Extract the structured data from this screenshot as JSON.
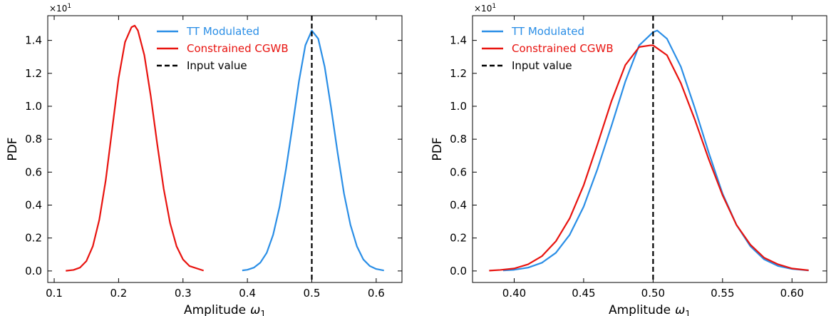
{
  "chart_data": [
    {
      "type": "line",
      "xlabel": "Amplitude",
      "xlabel_symbol": "ω",
      "xlabel_subscript": "1",
      "ylabel": "PDF",
      "y_multiplier_base": "×10",
      "y_multiplier_exp": "1",
      "xlim": [
        0.09,
        0.64
      ],
      "ylim": [
        -0.07,
        1.55
      ],
      "xticks": [
        0.1,
        0.2,
        0.3,
        0.4,
        0.5,
        0.6
      ],
      "xtick_labels": [
        "0.1",
        "0.2",
        "0.3",
        "0.4",
        "0.5",
        "0.6"
      ],
      "yticks": [
        0.0,
        0.2,
        0.4,
        0.6,
        0.8,
        1.0,
        1.2,
        1.4
      ],
      "ytick_labels": [
        "0.0",
        "0.2",
        "0.4",
        "0.6",
        "0.8",
        "1.0",
        "1.2",
        "1.4"
      ],
      "legend_position": "top-center",
      "input_value": 0.5,
      "series": [
        {
          "name": "TT Modulated",
          "color": "#2a8ee6",
          "x": [
            0.392,
            0.4,
            0.41,
            0.42,
            0.43,
            0.44,
            0.45,
            0.46,
            0.47,
            0.48,
            0.49,
            0.5,
            0.51,
            0.52,
            0.53,
            0.54,
            0.55,
            0.56,
            0.57,
            0.58,
            0.59,
            0.6,
            0.612
          ],
          "y": [
            0.003,
            0.007,
            0.02,
            0.05,
            0.11,
            0.22,
            0.39,
            0.62,
            0.88,
            1.15,
            1.37,
            1.46,
            1.41,
            1.24,
            0.99,
            0.72,
            0.47,
            0.28,
            0.15,
            0.07,
            0.03,
            0.012,
            0.003
          ]
        },
        {
          "name": "Constrained CGWB",
          "color": "#e8130f",
          "x": [
            0.118,
            0.13,
            0.14,
            0.15,
            0.16,
            0.17,
            0.18,
            0.19,
            0.2,
            0.21,
            0.22,
            0.225,
            0.23,
            0.24,
            0.25,
            0.26,
            0.27,
            0.28,
            0.29,
            0.3,
            0.31,
            0.332
          ],
          "y": [
            0.001,
            0.006,
            0.02,
            0.06,
            0.15,
            0.31,
            0.55,
            0.86,
            1.17,
            1.39,
            1.48,
            1.49,
            1.46,
            1.31,
            1.06,
            0.77,
            0.5,
            0.29,
            0.15,
            0.07,
            0.03,
            0.002
          ]
        }
      ],
      "vline": {
        "name": "Input value",
        "color": "#000000",
        "x": 0.5
      }
    },
    {
      "type": "line",
      "xlabel": "Amplitude",
      "xlabel_symbol": "ω",
      "xlabel_subscript": "1",
      "ylabel": "PDF",
      "y_multiplier_base": "×10",
      "y_multiplier_exp": "1",
      "xlim": [
        0.37,
        0.625
      ],
      "ylim": [
        -0.07,
        1.55
      ],
      "xticks": [
        0.4,
        0.45,
        0.5,
        0.55,
        0.6
      ],
      "xtick_labels": [
        "0.40",
        "0.45",
        "0.50",
        "0.55",
        "0.60"
      ],
      "yticks": [
        0.0,
        0.2,
        0.4,
        0.6,
        0.8,
        1.0,
        1.2,
        1.4
      ],
      "ytick_labels": [
        "0.0",
        "0.2",
        "0.4",
        "0.6",
        "0.8",
        "1.0",
        "1.2",
        "1.4"
      ],
      "legend_position": "top-left",
      "input_value": 0.5,
      "series": [
        {
          "name": "TT Modulated",
          "color": "#2a8ee6",
          "x": [
            0.392,
            0.4,
            0.41,
            0.42,
            0.43,
            0.44,
            0.45,
            0.46,
            0.47,
            0.48,
            0.49,
            0.5,
            0.503,
            0.51,
            0.52,
            0.53,
            0.54,
            0.55,
            0.56,
            0.57,
            0.58,
            0.59,
            0.6,
            0.612
          ],
          "y": [
            0.003,
            0.007,
            0.02,
            0.05,
            0.11,
            0.22,
            0.39,
            0.62,
            0.88,
            1.15,
            1.37,
            1.45,
            1.46,
            1.41,
            1.24,
            0.99,
            0.72,
            0.47,
            0.28,
            0.15,
            0.07,
            0.03,
            0.012,
            0.003
          ]
        },
        {
          "name": "Constrained CGWB",
          "color": "#e8130f",
          "x": [
            0.382,
            0.39,
            0.4,
            0.41,
            0.42,
            0.43,
            0.44,
            0.45,
            0.46,
            0.47,
            0.48,
            0.49,
            0.498,
            0.5,
            0.51,
            0.52,
            0.53,
            0.54,
            0.55,
            0.56,
            0.57,
            0.58,
            0.59,
            0.6,
            0.612
          ],
          "y": [
            0.002,
            0.006,
            0.015,
            0.04,
            0.09,
            0.18,
            0.32,
            0.52,
            0.77,
            1.03,
            1.25,
            1.36,
            1.37,
            1.37,
            1.31,
            1.14,
            0.92,
            0.68,
            0.46,
            0.28,
            0.16,
            0.08,
            0.04,
            0.015,
            0.004
          ]
        }
      ],
      "vline": {
        "name": "Input value",
        "color": "#000000",
        "x": 0.5
      }
    }
  ]
}
